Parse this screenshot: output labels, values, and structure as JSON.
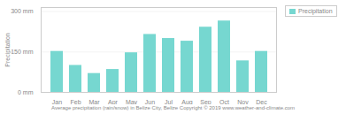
{
  "chart_data": {
    "type": "bar",
    "categories": [
      "Jan",
      "Feb",
      "Mar",
      "Apr",
      "May",
      "Jun",
      "Jul",
      "Aug",
      "Sep",
      "Oct",
      "Nov",
      "Dec"
    ],
    "series": [
      {
        "name": "Precipitation",
        "color": "#76d7d0",
        "values": [
          152,
          100,
          70,
          85,
          147,
          215,
          200,
          190,
          242,
          265,
          117,
          152
        ]
      }
    ],
    "ylabel": "Precipitation",
    "xlabel": "Average precipitation (rain/snow) in Belize City, Belize   Copyright © 2019 www.weather-and-climate.com",
    "ylim": [
      0,
      315
    ],
    "yticks": [
      {
        "value": 0,
        "label": "0 mm"
      },
      {
        "value": 150,
        "label": "150 mm"
      },
      {
        "value": 300,
        "label": "300 mm"
      }
    ],
    "grid": true,
    "legend": "right"
  }
}
